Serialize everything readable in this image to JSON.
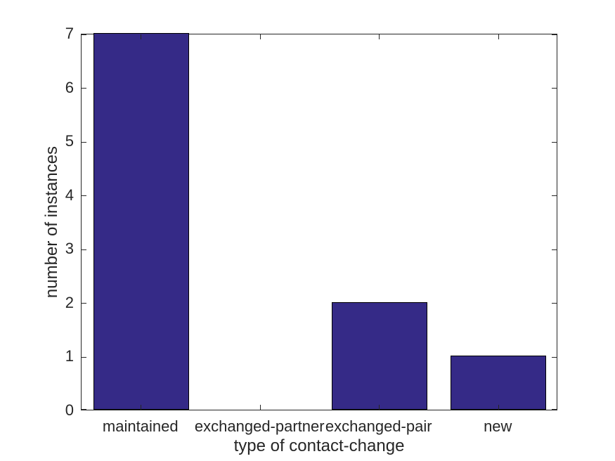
{
  "figure": {
    "background": "#ffffff"
  },
  "chart_data": {
    "type": "bar",
    "title": "",
    "categories": [
      "maintained",
      "exchanged-partner",
      "exchanged-pair",
      "new"
    ],
    "values": [
      7,
      0,
      2,
      1
    ],
    "xlabel": "type of contact-change",
    "ylabel": "number of instances",
    "yticks": [
      0,
      1,
      2,
      3,
      4,
      5,
      6,
      7
    ],
    "ylim": [
      0,
      7
    ],
    "bar_width_fraction": 0.8,
    "bar_color": "#352A87",
    "bar_edge_color": "#000000",
    "axis_color": "#262626",
    "text_color": "#262626",
    "grid": false,
    "legend": false,
    "tick_direction": "in",
    "box": true
  }
}
